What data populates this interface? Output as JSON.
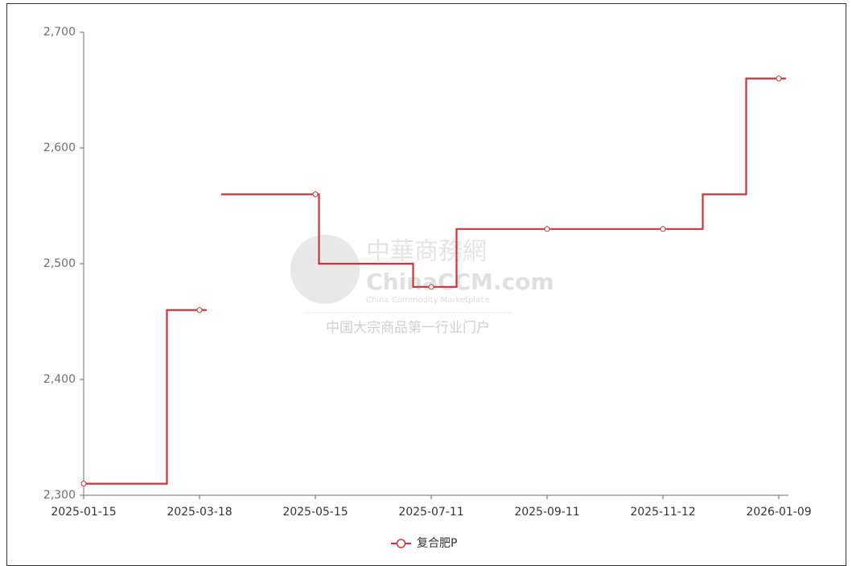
{
  "chart_data": {
    "type": "line",
    "step": "middle",
    "categories": [
      "2025-01-15",
      null,
      null,
      null,
      null,
      null,
      null,
      null,
      null,
      null,
      null,
      null,
      null,
      null,
      null,
      null,
      "2025-03-18",
      null,
      null,
      null,
      null,
      null,
      null,
      null,
      null,
      null,
      null,
      null,
      null,
      null,
      null,
      null,
      "2025-05-15",
      null,
      null,
      null,
      null,
      null,
      null,
      null,
      null,
      null,
      null,
      null,
      null,
      null,
      null,
      null,
      "2025-07-11",
      null,
      null,
      null,
      null,
      null,
      null,
      null,
      null,
      null,
      null,
      null,
      null,
      null,
      null,
      null,
      "2025-09-11",
      null,
      null,
      null,
      null,
      null,
      null,
      null,
      null,
      null,
      null,
      null,
      null,
      null,
      null,
      null,
      "2025-11-12",
      null,
      null,
      null,
      null,
      null,
      null,
      null,
      null,
      null,
      null,
      null,
      null,
      null,
      null,
      null,
      "2026-01-09",
      null
    ],
    "series": [
      {
        "name": "复合肥P",
        "color": "#c9363a",
        "values": [
          2310,
          2310,
          2310,
          2310,
          2310,
          2310,
          2310,
          2310,
          2310,
          2310,
          2310,
          2310,
          2460,
          2460,
          2460,
          2460,
          2460,
          2460,
          null,
          2560,
          2560,
          2560,
          2560,
          2560,
          2560,
          2560,
          2560,
          2560,
          2560,
          2560,
          2560,
          2560,
          2560,
          2500,
          2500,
          2500,
          2500,
          2500,
          2500,
          2500,
          2500,
          2500,
          2500,
          2500,
          2500,
          2500,
          2480,
          2480,
          2480,
          2480,
          2480,
          2480,
          2530,
          2530,
          2530,
          2530,
          2530,
          2530,
          2530,
          2530,
          2530,
          2530,
          2530,
          2530,
          2530,
          2530,
          2530,
          2530,
          2530,
          2530,
          2530,
          2530,
          2530,
          2530,
          2530,
          2530,
          2530,
          2530,
          2530,
          2530,
          2530,
          2530,
          2530,
          2530,
          2530,
          2530,
          2560,
          2560,
          2560,
          2560,
          2560,
          2560,
          2660,
          2660,
          2660,
          2660,
          2660,
          2660
        ]
      }
    ],
    "ylim": [
      2300,
      2700
    ],
    "yticks": [
      {
        "value": 2300,
        "label": "2,300"
      },
      {
        "value": 2400,
        "label": "2,400"
      },
      {
        "value": 2500,
        "label": "2,500"
      },
      {
        "value": 2600,
        "label": "2,600"
      },
      {
        "value": 2700,
        "label": "2,700"
      }
    ],
    "grid": false,
    "legend": "bottom",
    "watermark": [
      "中華商務網",
      "ChinaCCM.com",
      "China Commodity Marketplace",
      "中国大宗商品第一行业门户"
    ]
  }
}
